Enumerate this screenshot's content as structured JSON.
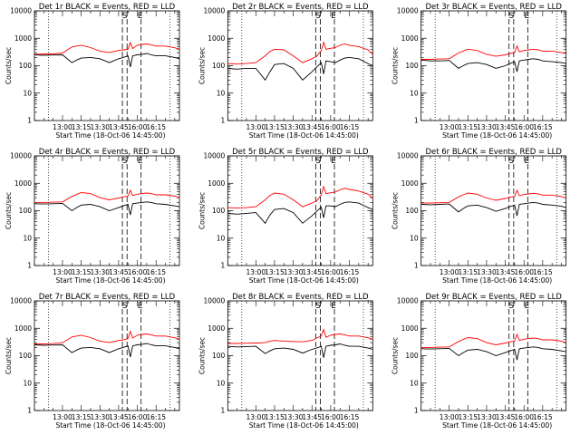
{
  "figure": {
    "ylabel": "Counts/sec",
    "xlabel": "Start Time (18-Oct-06 14:45:00)",
    "tick_labels_x": [
      "13:00",
      "13:15",
      "13:30",
      "13:45",
      "16:00",
      "16:15"
    ],
    "tick_labels_y": [
      "1",
      "10",
      "100",
      "1000",
      "10000"
    ],
    "markers": [
      "S",
      "E"
    ]
  },
  "colors": {
    "events": "#000000",
    "lld": "#ff0000"
  },
  "chart_data": [
    {
      "type": "line",
      "title": "Det 1r BLACK = Events, RED = LLD",
      "ylim": [
        1,
        10000
      ],
      "yscale": "log",
      "grid": false,
      "x": [
        0,
        2,
        4,
        6,
        8,
        9,
        10,
        12,
        14,
        16,
        18,
        19,
        20,
        20.5,
        21,
        22,
        23,
        24,
        25,
        26,
        28,
        30,
        31
      ],
      "series": [
        {
          "name": "Events",
          "values": [
            250,
            240,
            245,
            250,
            130,
            160,
            190,
            200,
            180,
            130,
            180,
            200,
            230,
            90,
            230,
            250,
            260,
            280,
            250,
            230,
            230,
            200,
            180
          ]
        },
        {
          "name": "LLD",
          "values": [
            260,
            270,
            270,
            290,
            480,
            520,
            560,
            460,
            340,
            300,
            360,
            380,
            400,
            700,
            420,
            560,
            600,
            620,
            580,
            520,
            520,
            450,
            400
          ]
        }
      ]
    },
    {
      "type": "line",
      "title": "Det 2r BLACK = Events, RED = LLD",
      "ylim": [
        1,
        10000
      ],
      "yscale": "log",
      "grid": false,
      "x": [
        0,
        2,
        4,
        6,
        8,
        9,
        10,
        12,
        14,
        16,
        18,
        19,
        20,
        20.5,
        21,
        22,
        23,
        24,
        25,
        26,
        28,
        30,
        31
      ],
      "series": [
        {
          "name": "Events",
          "values": [
            80,
            75,
            80,
            80,
            30,
            60,
            110,
            120,
            80,
            30,
            60,
            90,
            130,
            50,
            150,
            140,
            130,
            160,
            190,
            200,
            180,
            120,
            100
          ]
        },
        {
          "name": "LLD",
          "values": [
            120,
            115,
            120,
            130,
            230,
            330,
            400,
            380,
            230,
            130,
            180,
            220,
            360,
            700,
            400,
            430,
            460,
            560,
            620,
            560,
            500,
            380,
            260
          ]
        }
      ]
    },
    {
      "type": "line",
      "title": "Det 3r BLACK = Events, RED = LLD",
      "ylim": [
        1,
        10000
      ],
      "yscale": "log",
      "grid": false,
      "x": [
        0,
        2,
        4,
        6,
        8,
        9,
        10,
        12,
        14,
        16,
        18,
        19,
        20,
        20.5,
        21,
        22,
        23,
        24,
        25,
        26,
        28,
        30,
        31
      ],
      "series": [
        {
          "name": "Events",
          "values": [
            160,
            150,
            150,
            155,
            80,
            100,
            120,
            130,
            110,
            80,
            100,
            120,
            140,
            60,
            150,
            160,
            170,
            180,
            170,
            150,
            140,
            130,
            120
          ]
        },
        {
          "name": "LLD",
          "values": [
            170,
            170,
            175,
            180,
            290,
            340,
            400,
            360,
            260,
            220,
            250,
            280,
            300,
            520,
            320,
            360,
            380,
            400,
            380,
            340,
            340,
            300,
            280
          ]
        }
      ]
    },
    {
      "type": "line",
      "title": "Det 4r BLACK = Events, RED = LLD",
      "ylim": [
        1,
        10000
      ],
      "yscale": "log",
      "grid": false,
      "x": [
        0,
        2,
        4,
        6,
        8,
        9,
        10,
        12,
        14,
        16,
        18,
        19,
        20,
        20.5,
        21,
        22,
        23,
        24,
        25,
        26,
        28,
        30,
        31
      ],
      "series": [
        {
          "name": "Events",
          "values": [
            180,
            175,
            180,
            185,
            100,
            130,
            160,
            170,
            140,
            100,
            130,
            150,
            170,
            70,
            180,
            190,
            200,
            210,
            200,
            180,
            170,
            150,
            140
          ]
        },
        {
          "name": "LLD",
          "values": [
            200,
            200,
            205,
            210,
            330,
            390,
            460,
            420,
            300,
            250,
            290,
            320,
            340,
            560,
            360,
            400,
            420,
            440,
            420,
            380,
            380,
            340,
            300
          ]
        }
      ]
    },
    {
      "type": "line",
      "title": "Det 5r BLACK = Events, RED = LLD",
      "ylim": [
        1,
        10000
      ],
      "yscale": "log",
      "grid": false,
      "x": [
        0,
        2,
        4,
        6,
        8,
        9,
        10,
        12,
        14,
        16,
        18,
        19,
        20,
        20.5,
        21,
        22,
        23,
        24,
        25,
        26,
        28,
        30,
        31
      ],
      "series": [
        {
          "name": "Events",
          "values": [
            80,
            75,
            80,
            85,
            35,
            70,
            110,
            120,
            85,
            35,
            65,
            95,
            135,
            55,
            150,
            150,
            140,
            170,
            200,
            210,
            190,
            130,
            110
          ]
        },
        {
          "name": "LLD",
          "values": [
            130,
            125,
            130,
            140,
            250,
            360,
            440,
            400,
            250,
            140,
            190,
            230,
            380,
            760,
            420,
            450,
            480,
            580,
            660,
            600,
            520,
            400,
            280
          ]
        }
      ]
    },
    {
      "type": "line",
      "title": "Det 6r BLACK = Events, RED = LLD",
      "ylim": [
        1,
        10000
      ],
      "yscale": "log",
      "grid": false,
      "x": [
        0,
        2,
        4,
        6,
        8,
        9,
        10,
        12,
        14,
        16,
        18,
        19,
        20,
        20.5,
        21,
        22,
        23,
        24,
        25,
        26,
        28,
        30,
        31
      ],
      "series": [
        {
          "name": "Events",
          "values": [
            170,
            165,
            170,
            175,
            90,
            120,
            150,
            160,
            130,
            95,
            120,
            140,
            160,
            65,
            170,
            180,
            190,
            200,
            190,
            170,
            160,
            145,
            130
          ]
        },
        {
          "name": "LLD",
          "values": [
            190,
            190,
            195,
            200,
            320,
            380,
            440,
            400,
            290,
            240,
            280,
            310,
            330,
            560,
            350,
            390,
            410,
            430,
            410,
            370,
            370,
            330,
            290
          ]
        }
      ]
    },
    {
      "type": "line",
      "title": "Det 7r BLACK = Events, RED = LLD",
      "ylim": [
        1,
        10000
      ],
      "yscale": "log",
      "grid": false,
      "x": [
        0,
        2,
        4,
        6,
        8,
        9,
        10,
        12,
        14,
        16,
        18,
        19,
        20,
        20.5,
        21,
        22,
        23,
        24,
        25,
        26,
        28,
        30,
        31
      ],
      "series": [
        {
          "name": "Events",
          "values": [
            250,
            240,
            245,
            250,
            130,
            160,
            190,
            200,
            180,
            130,
            180,
            200,
            230,
            90,
            230,
            250,
            260,
            280,
            250,
            230,
            230,
            200,
            180
          ]
        },
        {
          "name": "LLD",
          "values": [
            270,
            270,
            275,
            300,
            480,
            520,
            560,
            460,
            340,
            300,
            360,
            380,
            420,
            780,
            440,
            560,
            600,
            620,
            580,
            520,
            520,
            450,
            400
          ]
        }
      ]
    },
    {
      "type": "line",
      "title": "Det 8r BLACK = Events, RED = LLD",
      "ylim": [
        1,
        10000
      ],
      "yscale": "log",
      "grid": false,
      "x": [
        0,
        2,
        4,
        6,
        8,
        9,
        10,
        12,
        14,
        16,
        18,
        19,
        20,
        20.5,
        21,
        22,
        23,
        24,
        25,
        26,
        28,
        30,
        31
      ],
      "series": [
        {
          "name": "Events",
          "values": [
            220,
            210,
            215,
            220,
            120,
            150,
            180,
            190,
            170,
            125,
            170,
            190,
            220,
            85,
            220,
            240,
            250,
            270,
            240,
            220,
            220,
            190,
            170
          ]
        },
        {
          "name": "LLD",
          "values": [
            280,
            280,
            285,
            290,
            300,
            340,
            360,
            340,
            330,
            320,
            360,
            440,
            520,
            900,
            470,
            560,
            600,
            620,
            580,
            520,
            520,
            450,
            400
          ]
        }
      ]
    },
    {
      "type": "line",
      "title": "Det 9r BLACK = Events, RED = LLD",
      "ylim": [
        1,
        10000
      ],
      "yscale": "log",
      "grid": false,
      "x": [
        0,
        2,
        4,
        6,
        8,
        9,
        10,
        12,
        14,
        16,
        18,
        19,
        20,
        20.5,
        21,
        22,
        23,
        24,
        25,
        26,
        28,
        30,
        31
      ],
      "series": [
        {
          "name": "Events",
          "values": [
            180,
            175,
            180,
            185,
            100,
            130,
            160,
            170,
            140,
            100,
            130,
            150,
            170,
            70,
            180,
            190,
            200,
            210,
            200,
            180,
            170,
            150,
            140
          ]
        },
        {
          "name": "LLD",
          "values": [
            200,
            200,
            205,
            210,
            330,
            390,
            460,
            420,
            300,
            250,
            290,
            320,
            340,
            600,
            360,
            400,
            420,
            440,
            420,
            380,
            380,
            340,
            300
          ]
        }
      ]
    }
  ]
}
